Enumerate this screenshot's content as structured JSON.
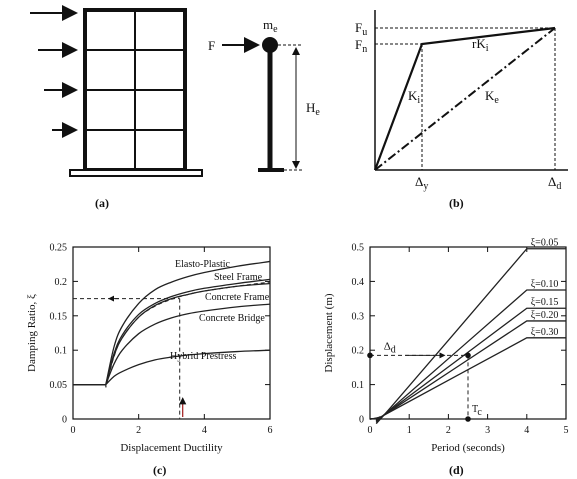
{
  "figure": {
    "panels": [
      {
        "id": "a",
        "caption": "(a)"
      },
      {
        "id": "b",
        "caption": "(b)"
      },
      {
        "id": "c",
        "caption": "(c)"
      },
      {
        "id": "d",
        "caption": "(d)"
      }
    ]
  },
  "panel_a": {
    "force_label": "F",
    "mass_label": "m",
    "mass_sub": "e",
    "height_label": "H",
    "height_sub": "e"
  },
  "panel_b": {
    "fu_label": "F",
    "fu_sub": "u",
    "fn_label": "F",
    "fn_sub": "n",
    "ki_label": "K",
    "ki_sub": "i",
    "rki_label": "rK",
    "rki_sub": "i",
    "ke_label": "K",
    "ke_sub": "e",
    "dy_label": "Δ",
    "dy_sub": "y",
    "dd_label": "Δ",
    "dd_sub": "d"
  },
  "panel_c": {
    "delta_marker": "ξ",
    "colors": {
      "curves": "#222222",
      "dashed": "#222222",
      "arrow": "#a01818"
    }
  },
  "panel_d": {
    "delta_label": "Δ",
    "delta_sub": "d",
    "tc_label": "T",
    "tc_sub": "c"
  },
  "chart_data": [
    {
      "type": "line",
      "panel": "c",
      "title": "",
      "xlabel": "Displacement Ductility",
      "ylabel": "Damping Ratio, ξ",
      "xlim": [
        0,
        6
      ],
      "ylim": [
        0,
        0.25
      ],
      "xticks": [
        "0",
        "2",
        "4",
        "6"
      ],
      "yticks": [
        "0",
        "0.05",
        "0.1",
        "0.15",
        "0.2",
        "0.25"
      ],
      "x": [
        0,
        1,
        1.25,
        1.5,
        2,
        2.5,
        3,
        3.5,
        4,
        5,
        6
      ],
      "series": [
        {
          "name": "Elasto-Plastic",
          "values": [
            0.05,
            0.05,
            0.105,
            0.135,
            0.168,
            0.188,
            0.199,
            0.207,
            0.213,
            0.222,
            0.229
          ]
        },
        {
          "name": "Steel Frame",
          "values": [
            0.05,
            0.05,
            0.095,
            0.122,
            0.152,
            0.168,
            0.178,
            0.185,
            0.19,
            0.197,
            0.203
          ]
        },
        {
          "name": "Concrete Frame",
          "values": [
            0.05,
            0.05,
            0.092,
            0.118,
            0.148,
            0.165,
            0.175,
            0.181,
            0.186,
            0.193,
            0.197
          ]
        },
        {
          "name": "Concrete Bridge",
          "values": [
            0.05,
            0.05,
            0.08,
            0.1,
            0.124,
            0.138,
            0.147,
            0.153,
            0.157,
            0.163,
            0.167
          ]
        },
        {
          "name": "Hybrid Prestress",
          "values": [
            0.05,
            0.05,
            0.062,
            0.069,
            0.079,
            0.086,
            0.09,
            0.093,
            0.095,
            0.098,
            0.1
          ]
        }
      ],
      "dashed_series": "Steel Frame",
      "annotation": {
        "x": 3.25,
        "y": 0.175,
        "style": "dashed-lookup"
      }
    },
    {
      "type": "line",
      "panel": "d",
      "title": "",
      "xlabel": "Period (seconds)",
      "ylabel": "Displacement (m)",
      "xlim": [
        0,
        5
      ],
      "ylim": [
        0,
        0.5
      ],
      "xticks": [
        "0",
        "1",
        "2",
        "3",
        "4",
        "5"
      ],
      "yticks": [
        "0",
        "0.1",
        "0.2",
        "0.3",
        "0.4",
        "0.5"
      ],
      "x": [
        0,
        0.25,
        0.5,
        4
      ],
      "x_end": 5,
      "series": [
        {
          "name": "ξ=0.05",
          "values": [
            0,
            0.006,
            0.03,
            0.495
          ],
          "plateau": 0.495
        },
        {
          "name": "ξ=0.10",
          "values": [
            0,
            0.005,
            0.026,
            0.375
          ],
          "plateau": 0.375
        },
        {
          "name": "ξ=0.15",
          "values": [
            0,
            0.005,
            0.024,
            0.322
          ],
          "plateau": 0.322
        },
        {
          "name": "ξ=0.20",
          "values": [
            0,
            0.004,
            0.022,
            0.285
          ],
          "plateau": 0.285
        },
        {
          "name": "ξ=0.30",
          "values": [
            0,
            0.004,
            0.02,
            0.236
          ],
          "plateau": 0.236
        }
      ],
      "annotation": {
        "x": 2.5,
        "y": 0.185,
        "style": "dashed-lookup"
      }
    }
  ]
}
